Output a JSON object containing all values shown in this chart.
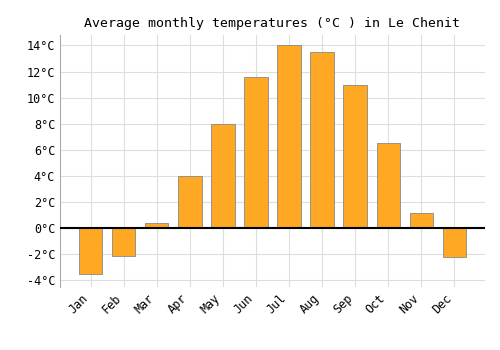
{
  "title": "Average monthly temperatures (°C ) in Le Chenit",
  "months": [
    "Jan",
    "Feb",
    "Mar",
    "Apr",
    "May",
    "Jun",
    "Jul",
    "Aug",
    "Sep",
    "Oct",
    "Nov",
    "Dec"
  ],
  "values": [
    -3.5,
    -2.1,
    0.4,
    4.0,
    8.0,
    11.6,
    14.0,
    13.5,
    11.0,
    6.5,
    1.2,
    -2.2
  ],
  "bar_color": "#FFA824",
  "bar_edge_color": "#888888",
  "ylim": [
    -4.5,
    14.8
  ],
  "yticks": [
    -4,
    -2,
    0,
    2,
    4,
    6,
    8,
    10,
    12,
    14
  ],
  "ytick_labels": [
    "-4°C",
    "-2°C",
    "0°C",
    "2°C",
    "4°C",
    "6°C",
    "8°C",
    "10°C",
    "12°C",
    "14°C"
  ],
  "background_color": "#ffffff",
  "grid_color": "#dddddd",
  "title_fontsize": 9.5,
  "tick_fontsize": 8.5,
  "bar_width": 0.7
}
